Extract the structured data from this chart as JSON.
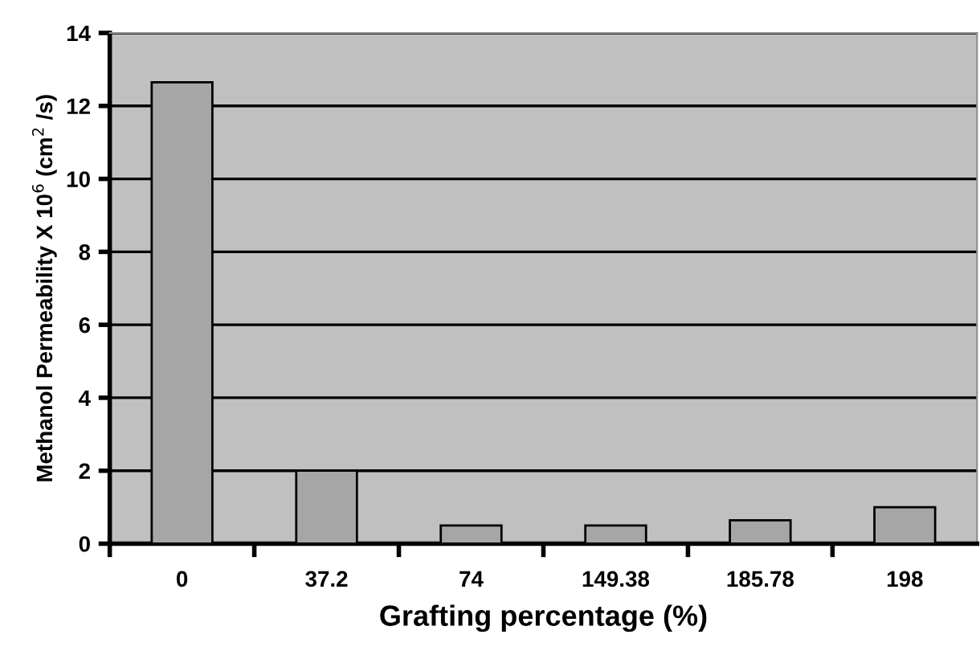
{
  "chart_data": {
    "type": "bar",
    "xlabel": "Grafting percentage (%)",
    "ylabel": "Methanol Permeability X 10$^{6}$ (cm$^{2}$ /s)",
    "categories": [
      "0",
      "37.2",
      "74",
      "149.38",
      "185.78",
      "198"
    ],
    "values": [
      12.65,
      2.0,
      0.5,
      0.5,
      0.64,
      1.0
    ],
    "color": "#a6a6a6",
    "ylim": [
      0,
      14
    ],
    "yticks": [
      0,
      2,
      4,
      6,
      8,
      10,
      12,
      14
    ],
    "grid": "y"
  }
}
